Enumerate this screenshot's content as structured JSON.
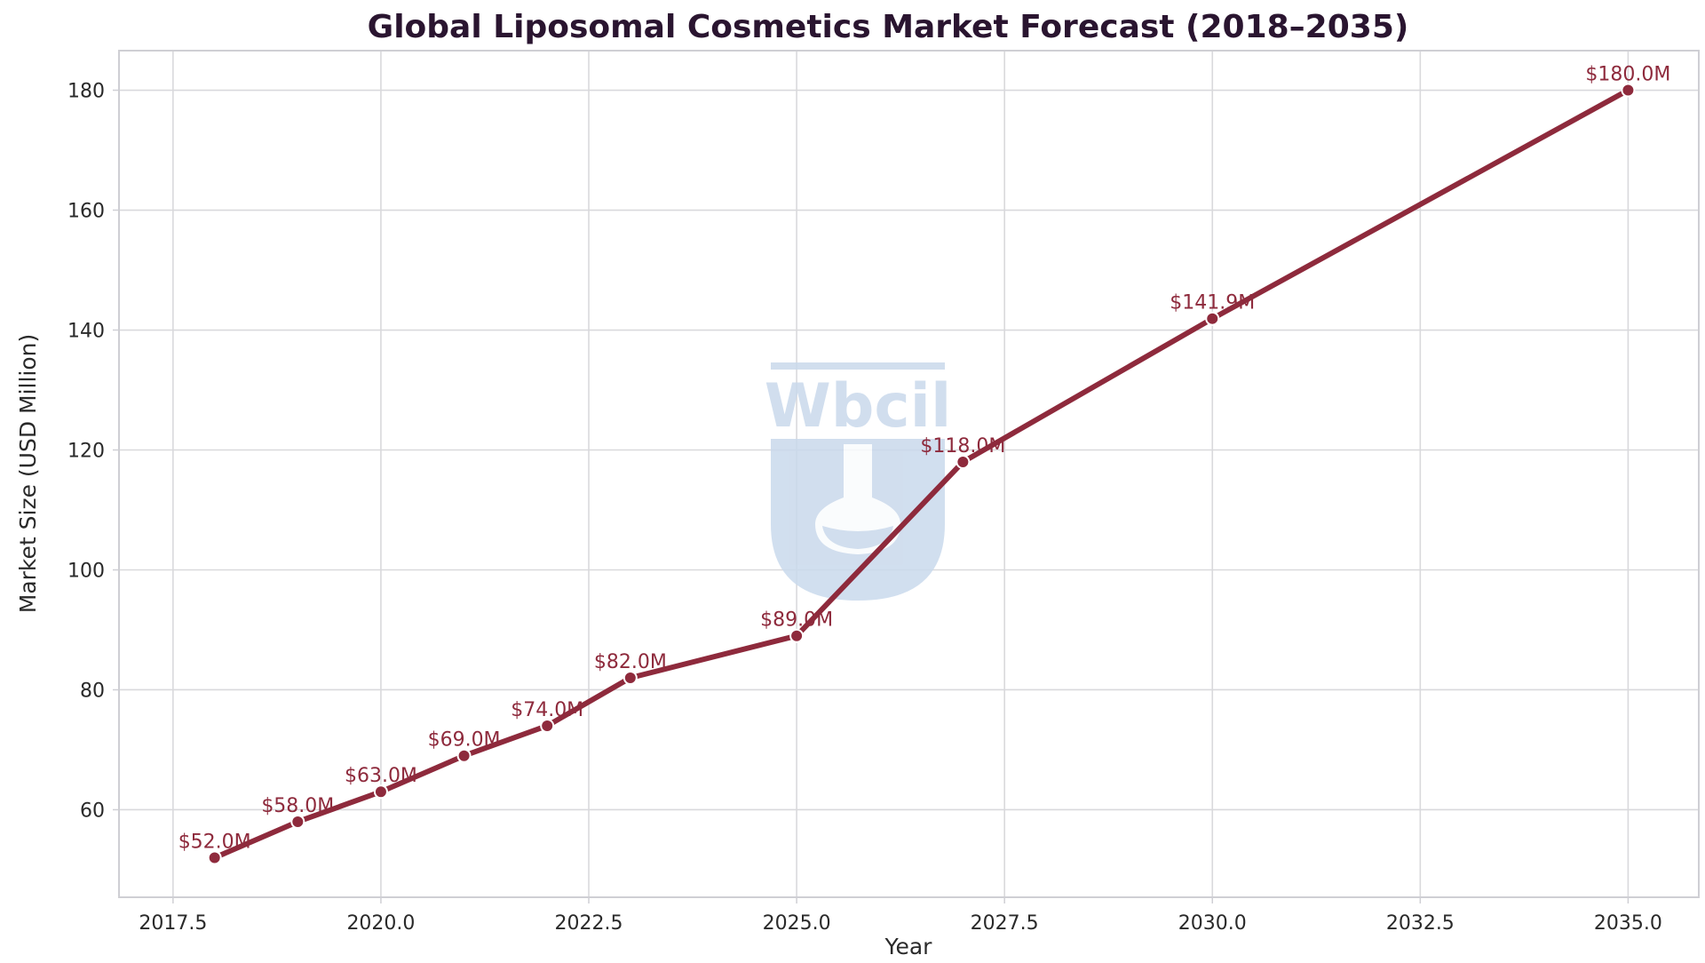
{
  "chart_data": {
    "type": "line",
    "title": "Global Liposomal Cosmetics Market Forecast (2018–2035)",
    "xlabel": "Year",
    "ylabel": "Market Size (USD Million)",
    "x": [
      2018,
      2019,
      2020,
      2021,
      2022,
      2023,
      2025,
      2027,
      2030,
      2035
    ],
    "values": [
      52.0,
      58.0,
      63.0,
      69.0,
      74.0,
      82.0,
      89.0,
      118.0,
      141.9,
      180.0
    ],
    "data_labels": [
      "$52.0M",
      "$58.0M",
      "$63.0M",
      "$69.0M",
      "$74.0M",
      "$82.0M",
      "$89.0M",
      "$118.0M",
      "$141.9M",
      "$180.0M"
    ],
    "xlim": [
      2016.85,
      2035.85
    ],
    "ylim": [
      45.4,
      186.6
    ],
    "xticks": [
      2017.5,
      2020.0,
      2022.5,
      2025.0,
      2027.5,
      2030.0,
      2032.5,
      2035.0
    ],
    "xtick_labels": [
      "2017.5",
      "2020.0",
      "2022.5",
      "2025.0",
      "2027.5",
      "2030.0",
      "2032.5",
      "2035.0"
    ],
    "yticks": [
      60,
      80,
      100,
      120,
      140,
      160,
      180
    ],
    "ytick_labels": [
      "60",
      "80",
      "100",
      "120",
      "140",
      "160",
      "180"
    ],
    "grid": true,
    "legend": "none",
    "colors": {
      "line": "#8e2a3c",
      "label": "#8e2a3c",
      "title": "#2a1530",
      "grid": "#d9d9dc",
      "axis_text": "#2a2a2a",
      "frame": "#cfcfd4",
      "watermark": "#c9d9ec"
    },
    "watermark_text": "Wbcil"
  }
}
